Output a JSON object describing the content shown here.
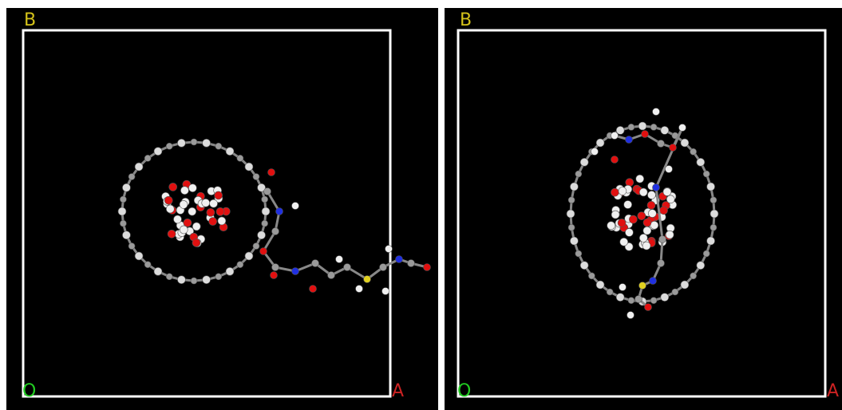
{
  "panels": [
    {
      "corner_labels": {
        "top_left": "B",
        "bottom_left": "O",
        "bottom_right": "A"
      }
    },
    {
      "corner_labels": {
        "top_left": "B",
        "bottom_left": "O",
        "bottom_right": "A"
      }
    }
  ]
}
